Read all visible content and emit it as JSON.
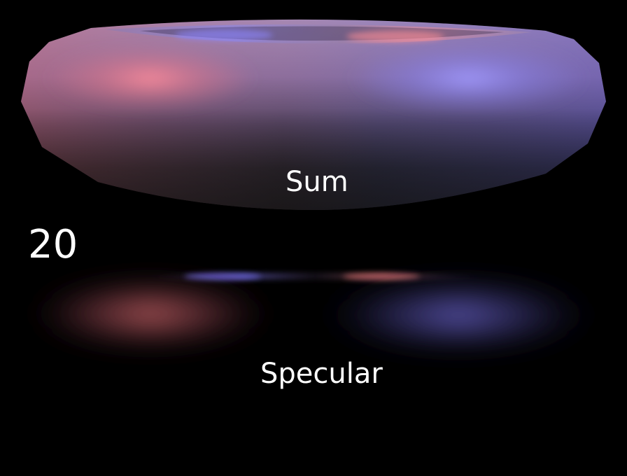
{
  "labels": {
    "sum": "Sum",
    "count": "20",
    "specular": "Specular"
  },
  "colors": {
    "background": "#000000",
    "text": "#ffffff",
    "torus_base": "#8a6f9e",
    "torus_dark": "#1a1a1a",
    "highlight_red": "#ff8c9a",
    "highlight_blue": "#9f97ff",
    "spec_red": "#b4585a",
    "spec_blue": "#5c56b0"
  }
}
